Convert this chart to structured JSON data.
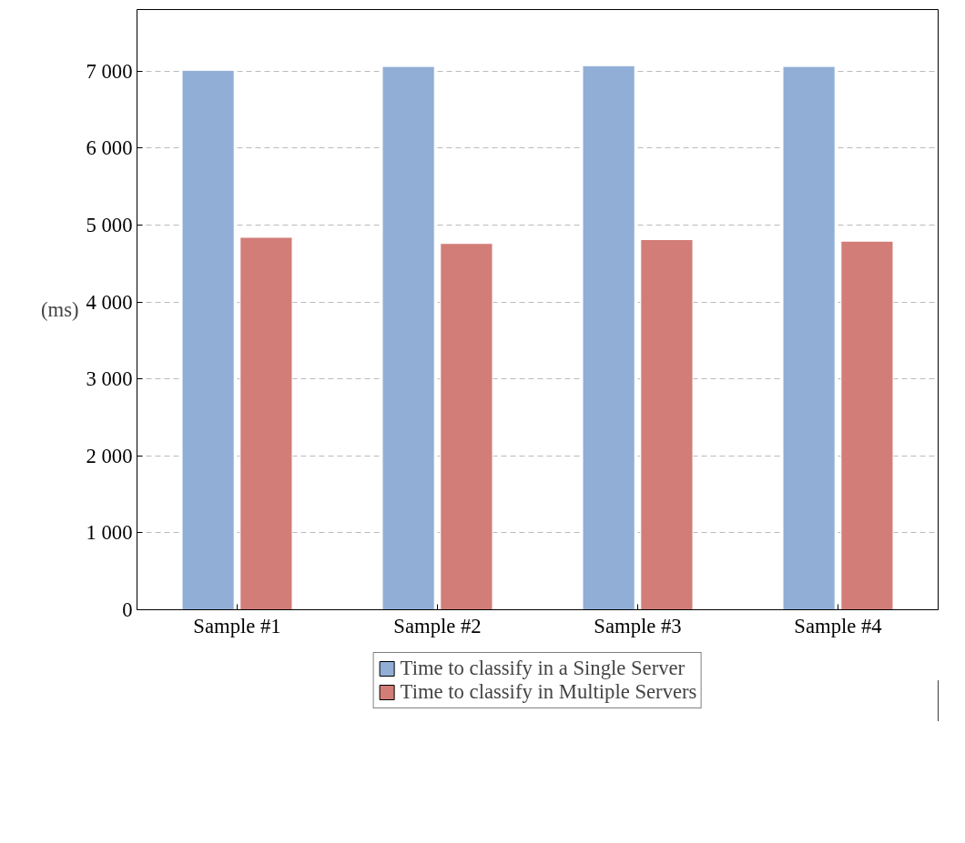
{
  "chart_data": {
    "type": "bar",
    "ylabel": "(ms)",
    "categories": [
      "Sample #1",
      "Sample #2",
      "Sample #3",
      "Sample #4"
    ],
    "series": [
      {
        "name": "Time to classify in a Single Server",
        "color": "#91aed6",
        "values": [
          7010,
          7060,
          7070,
          7060
        ]
      },
      {
        "name": "Time to classify in Multiple Servers",
        "color": "#d27d78",
        "values": [
          4840,
          4760,
          4810,
          4790
        ]
      }
    ],
    "ylim": [
      0,
      7800
    ],
    "yticks": [
      0,
      {
        "value": 1000,
        "label": "1 000"
      },
      {
        "value": 2000,
        "label": "2 000"
      },
      {
        "value": 3000,
        "label": "3 000"
      },
      {
        "value": 4000,
        "label": "4 000"
      },
      {
        "value": 5000,
        "label": "5 000"
      },
      {
        "value": 6000,
        "label": "6 000"
      },
      {
        "value": 7000,
        "label": "7 000"
      }
    ],
    "grid": "y",
    "legend": "bottom"
  }
}
